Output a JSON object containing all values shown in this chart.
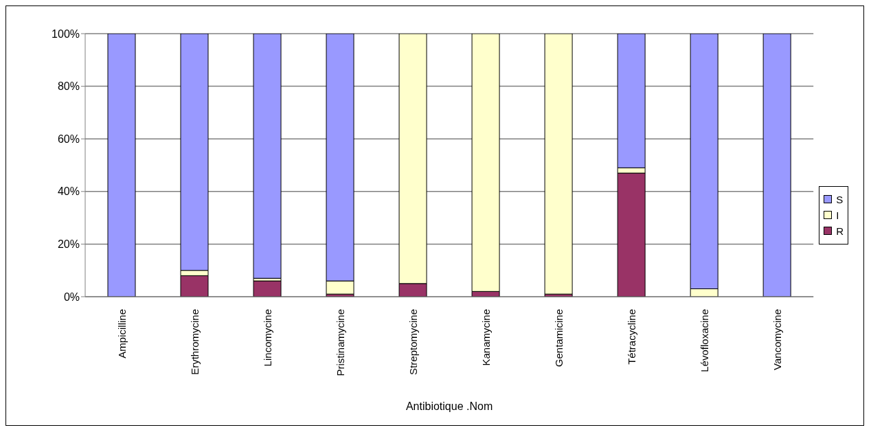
{
  "chart_data": {
    "type": "bar",
    "stacked": true,
    "xlabel": "Antibiotique .Nom",
    "categories": [
      "Ampicilline",
      "Erythromycine",
      "Lincomycine",
      "Pristinamycine",
      "Streptomycine",
      "Kanamycine",
      "Gentamicine",
      "Tétracycline",
      "Lévofloxacine",
      "Vancomycine"
    ],
    "series": [
      {
        "name": "R",
        "color": "#993366",
        "values": [
          0,
          8,
          6,
          1,
          5,
          2,
          1,
          47,
          0,
          0
        ]
      },
      {
        "name": "I",
        "color": "#ffffcc",
        "values": [
          0,
          2,
          1,
          5,
          95,
          98,
          99,
          2,
          3,
          0
        ]
      },
      {
        "name": "S",
        "color": "#9999ff",
        "values": [
          100,
          90,
          93,
          94,
          0,
          0,
          0,
          51,
          97,
          100
        ]
      }
    ],
    "ylim": [
      0,
      100
    ],
    "yticks": [
      {
        "value": 0,
        "label": "0%"
      },
      {
        "value": 20,
        "label": "20%"
      },
      {
        "value": 40,
        "label": "40%"
      },
      {
        "value": 60,
        "label": "60%"
      },
      {
        "value": 80,
        "label": "80%"
      },
      {
        "value": 100,
        "label": "100%"
      }
    ],
    "grid": "y",
    "legend": "right"
  }
}
